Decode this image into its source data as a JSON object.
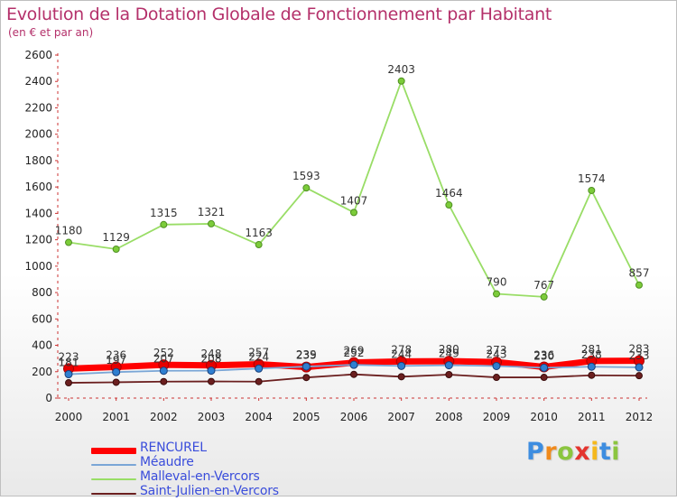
{
  "chart_data": {
    "type": "line",
    "title": "Evolution de la Dotation Globale de Fonctionnement par Habitant",
    "subtitle": "(en € et par an)",
    "xlabel": "",
    "ylabel": "",
    "ylim": [
      0,
      2600
    ],
    "yticks": [
      0,
      200,
      400,
      600,
      800,
      1000,
      1200,
      1400,
      1600,
      1800,
      2000,
      2200,
      2400,
      2600
    ],
    "categories": [
      "2000",
      "2001",
      "2002",
      "2003",
      "2004",
      "2005",
      "2006",
      "2007",
      "2008",
      "2009",
      "2010",
      "2011",
      "2012"
    ],
    "series": [
      {
        "name": "RENCUREL",
        "color": "#ff0000",
        "values": [
          223,
          236,
          252,
          248,
          257,
          235,
          269,
          278,
          280,
          273,
          236,
          281,
          283
        ]
      },
      {
        "name": "Méaudre",
        "color": "#6699cc",
        "values": [
          181,
          197,
          207,
          208,
          224,
          239,
          252,
          244,
          249,
          243,
          230,
          238,
          233
        ]
      },
      {
        "name": "Malleval-en-Vercors",
        "color": "#99dd66",
        "values": [
          1180,
          1129,
          1315,
          1321,
          1163,
          1593,
          1407,
          2403,
          1464,
          790,
          767,
          1574,
          857
        ]
      },
      {
        "name": "Saint-Julien-en-Vercors",
        "color": "#661a1a",
        "values": [
          116,
          120,
          125,
          126,
          125,
          156,
          180,
          162,
          178,
          157,
          157,
          173,
          170
        ]
      }
    ],
    "grid": false,
    "legend_position": "bottom-left"
  },
  "logo": {
    "letters": [
      "P",
      "r",
      "o",
      "x",
      "i",
      "t",
      "i"
    ],
    "colors": [
      "#3d8de0",
      "#f08a1c",
      "#8bc53f",
      "#e4342e",
      "#f5b81c",
      "#3d8de0",
      "#8bc53f"
    ]
  }
}
